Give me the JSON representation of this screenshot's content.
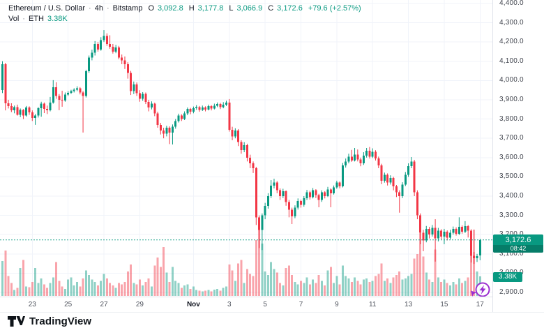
{
  "header": {
    "symbol": "Ethereum / U.S. Dollar",
    "sep": "·",
    "interval": "4h",
    "exchange": "Bitstamp",
    "ohlc": {
      "o_label": "O",
      "o": "3,092.8",
      "h_label": "H",
      "h": "3,177.8",
      "l_label": "L",
      "l": "3,066.9",
      "c_label": "C",
      "c": "3,172.6",
      "change": "+79.6 (+2.57%)"
    },
    "volume_row": {
      "label": "Vol",
      "sep": "·",
      "unit": "ETH",
      "value": "3.38K"
    }
  },
  "price_axis": {
    "current_price_label": "3,172.6",
    "countdown": "08:42",
    "volume_badge": "3.38K"
  },
  "footer": {
    "brand": "TradingView"
  },
  "colors": {
    "up": "#089981",
    "down": "#f23645",
    "vol_up": "rgba(8,153,129,0.45)",
    "vol_down": "rgba(242,54,69,0.45)",
    "grid": "#f0f3fa",
    "axis_border": "#e0e3eb",
    "accent": "#089981",
    "marker": "#9b2fd0",
    "text_dark": "#131722",
    "text_gray": "#787b86"
  },
  "chart_data": {
    "type": "candlestick",
    "title": "Ethereum / U.S. Dollar · 4h · Bitstamp",
    "legend": [
      "Price (ETH/USD candles)",
      "Vol · ETH"
    ],
    "current_bar": {
      "open": 3092.8,
      "high": 3177.8,
      "low": 3066.9,
      "close": 3172.6,
      "change": 79.6,
      "change_pct": 2.57
    },
    "current_price": 3172.6,
    "current_volume": "3.38K",
    "y_axis": {
      "min": 2900,
      "max": 4400,
      "step": 100,
      "labels": [
        "4,400.0",
        "4,300.0",
        "4,200.0",
        "4,100.0",
        "4,000.0",
        "3,900.0",
        "3,800.0",
        "3,700.0",
        "3,600.0",
        "3,500.0",
        "3,400.0",
        "3,300.0",
        "3,200.0",
        "3,100.0",
        "3,000.0",
        "2,900.0"
      ]
    },
    "x_ticks": [
      {
        "label": "23",
        "i": 10
      },
      {
        "label": "25",
        "i": 22
      },
      {
        "label": "27",
        "i": 34
      },
      {
        "label": "29",
        "i": 46
      },
      {
        "label": "Nov",
        "i": 64,
        "month": true
      },
      {
        "label": "3",
        "i": 76
      },
      {
        "label": "5",
        "i": 88
      },
      {
        "label": "7",
        "i": 100
      },
      {
        "label": "9",
        "i": 112
      },
      {
        "label": "11",
        "i": 124
      },
      {
        "label": "13",
        "i": 136
      },
      {
        "label": "15",
        "i": 148
      },
      {
        "label": "17",
        "i": 160
      }
    ],
    "candles": [
      [
        3950,
        4100,
        3935,
        4085,
        6.0
      ],
      [
        4085,
        4092,
        3845,
        3882,
        7.8
      ],
      [
        3882,
        3900,
        3855,
        3868,
        3.4
      ],
      [
        3868,
        3882,
        3836,
        3845,
        2.2
      ],
      [
        3845,
        3870,
        3830,
        3862,
        1.0
      ],
      [
        3862,
        3875,
        3818,
        3823,
        1.4
      ],
      [
        3823,
        3855,
        3810,
        3848,
        4.8
      ],
      [
        3848,
        3852,
        3800,
        3818,
        6.2
      ],
      [
        3818,
        3868,
        3812,
        3860,
        1.6
      ],
      [
        3860,
        3866,
        3822,
        3835,
        1.5
      ],
      [
        3835,
        3845,
        3790,
        3805,
        2.4
      ],
      [
        3805,
        3826,
        3770,
        3818,
        4.8
      ],
      [
        3818,
        3862,
        3808,
        3856,
        2.2
      ],
      [
        3856,
        3890,
        3812,
        3880,
        3.0
      ],
      [
        3880,
        3886,
        3831,
        3852,
        2.0
      ],
      [
        3852,
        3870,
        3826,
        3846,
        1.4
      ],
      [
        3846,
        3915,
        3840,
        3885,
        2.2
      ],
      [
        3885,
        4002,
        3880,
        3965,
        3.2
      ],
      [
        3965,
        3991,
        3905,
        3920,
        5.8
      ],
      [
        3920,
        3930,
        3846,
        3900,
        2.6
      ],
      [
        3900,
        3947,
        3864,
        3896,
        1.6
      ],
      [
        3896,
        3938,
        3890,
        3928,
        1.2
      ],
      [
        3928,
        3945,
        3920,
        3936,
        2.8
      ],
      [
        3936,
        3952,
        3930,
        3945,
        3.2
      ],
      [
        3945,
        3960,
        3938,
        3952,
        1.8
      ],
      [
        3952,
        3970,
        3945,
        3960,
        2.4
      ],
      [
        3960,
        3966,
        3928,
        3938,
        1.6
      ],
      [
        3938,
        3945,
        3730,
        3920,
        3.0
      ],
      [
        3920,
        4056,
        3912,
        4048,
        4.4
      ],
      [
        4048,
        4130,
        4040,
        4120,
        3.6
      ],
      [
        4120,
        4160,
        4105,
        4145,
        2.8
      ],
      [
        4145,
        4205,
        4130,
        4190,
        2.4
      ],
      [
        4190,
        4200,
        4150,
        4160,
        1.8
      ],
      [
        4160,
        4225,
        4155,
        4210,
        2.6
      ],
      [
        4210,
        4262,
        4200,
        4232,
        3.8
      ],
      [
        4232,
        4245,
        4180,
        4190,
        3.0
      ],
      [
        4190,
        4235,
        4165,
        4175,
        2.2
      ],
      [
        4175,
        4190,
        4140,
        4150,
        1.8
      ],
      [
        4150,
        4185,
        4142,
        4172,
        1.4
      ],
      [
        4172,
        4180,
        4110,
        4120,
        2.2
      ],
      [
        4120,
        4135,
        4085,
        4105,
        2.0
      ],
      [
        4105,
        4125,
        4060,
        4085,
        2.4
      ],
      [
        4085,
        4095,
        4010,
        4040,
        4.2
      ],
      [
        4040,
        4050,
        3925,
        3945,
        5.4
      ],
      [
        3945,
        3995,
        3930,
        3980,
        2.2
      ],
      [
        3980,
        3990,
        3920,
        3935,
        2.0
      ],
      [
        3935,
        3950,
        3890,
        3905,
        2.8
      ],
      [
        3905,
        3940,
        3895,
        3930,
        1.8
      ],
      [
        3930,
        3938,
        3878,
        3890,
        2.4
      ],
      [
        3890,
        3900,
        3840,
        3860,
        3.0
      ],
      [
        3860,
        3892,
        3850,
        3880,
        1.6
      ],
      [
        3880,
        3885,
        3815,
        3830,
        5.2
      ],
      [
        3830,
        3838,
        3755,
        3770,
        6.6
      ],
      [
        3770,
        3780,
        3720,
        3740,
        5.0
      ],
      [
        3740,
        3755,
        3700,
        3725,
        8.4
      ],
      [
        3725,
        3765,
        3710,
        3755,
        4.0
      ],
      [
        3755,
        3762,
        3670,
        3730,
        2.4
      ],
      [
        3730,
        3772,
        3668,
        3760,
        5.0
      ],
      [
        3760,
        3800,
        3750,
        3790,
        2.6
      ],
      [
        3790,
        3828,
        3782,
        3818,
        2.2
      ],
      [
        3818,
        3825,
        3790,
        3800,
        1.4
      ],
      [
        3800,
        3840,
        3795,
        3830,
        1.8
      ],
      [
        3830,
        3860,
        3820,
        3852,
        2.0
      ],
      [
        3852,
        3858,
        3825,
        3838,
        1.2
      ],
      [
        3838,
        3865,
        3830,
        3856,
        1.6
      ],
      [
        3856,
        3872,
        3848,
        3862,
        1.0
      ],
      [
        3862,
        3868,
        3838,
        3848,
        0.9
      ],
      [
        3848,
        3870,
        3842,
        3860,
        0.8
      ],
      [
        3860,
        3866,
        3840,
        3850,
        0.9
      ],
      [
        3850,
        3875,
        3845,
        3868,
        1.0
      ],
      [
        3868,
        3872,
        3845,
        3855,
        0.8
      ],
      [
        3855,
        3880,
        3850,
        3870,
        1.1
      ],
      [
        3870,
        3886,
        3862,
        3878,
        1.2
      ],
      [
        3878,
        3884,
        3852,
        3862,
        0.9
      ],
      [
        3862,
        3888,
        3856,
        3875,
        1.4
      ],
      [
        3875,
        3895,
        3868,
        3885,
        1.6
      ],
      [
        3885,
        3904,
        3735,
        3745,
        5.4
      ],
      [
        3745,
        3760,
        3690,
        3710,
        4.4
      ],
      [
        3710,
        3752,
        3700,
        3740,
        2.6
      ],
      [
        3740,
        3748,
        3660,
        3680,
        5.6
      ],
      [
        3680,
        3690,
        3620,
        3640,
        6.2
      ],
      [
        3640,
        3680,
        3628,
        3665,
        2.2
      ],
      [
        3665,
        3672,
        3580,
        3600,
        4.6
      ],
      [
        3600,
        3615,
        3545,
        3570,
        3.8
      ],
      [
        3570,
        3580,
        3520,
        3545,
        3.4
      ],
      [
        3545,
        3552,
        3250,
        3290,
        9.6
      ],
      [
        3290,
        3300,
        3130,
        3225,
        11.8
      ],
      [
        3225,
        3310,
        3120,
        3300,
        9.0
      ],
      [
        3300,
        3365,
        3280,
        3350,
        4.2
      ],
      [
        3350,
        3415,
        3335,
        3400,
        3.6
      ],
      [
        3400,
        3483,
        3390,
        3455,
        5.8
      ],
      [
        3455,
        3490,
        3440,
        3470,
        4.6
      ],
      [
        3470,
        3478,
        3415,
        3430,
        4.0
      ],
      [
        3430,
        3440,
        3380,
        3400,
        2.2
      ],
      [
        3400,
        3438,
        3390,
        3425,
        1.8
      ],
      [
        3425,
        3430,
        3350,
        3370,
        4.8
      ],
      [
        3370,
        3380,
        3290,
        3330,
        5.2
      ],
      [
        3330,
        3340,
        3255,
        3295,
        3.6
      ],
      [
        3295,
        3352,
        3285,
        3340,
        2.4
      ],
      [
        3340,
        3388,
        3330,
        3375,
        2.0
      ],
      [
        3375,
        3382,
        3340,
        3355,
        2.6
      ],
      [
        3355,
        3400,
        3345,
        3390,
        2.2
      ],
      [
        3390,
        3432,
        3380,
        3420,
        3.2
      ],
      [
        3420,
        3428,
        3382,
        3395,
        2.0
      ],
      [
        3395,
        3442,
        3388,
        3430,
        2.8
      ],
      [
        3430,
        3436,
        3390,
        3405,
        2.2
      ],
      [
        3405,
        3412,
        3342,
        3380,
        3.6
      ],
      [
        3380,
        3430,
        3370,
        3420,
        2.6
      ],
      [
        3420,
        3426,
        3388,
        3400,
        1.8
      ],
      [
        3400,
        3448,
        3395,
        3435,
        4.4
      ],
      [
        3435,
        3440,
        3342,
        3415,
        5.0
      ],
      [
        3415,
        3455,
        3408,
        3445,
        2.2
      ],
      [
        3445,
        3480,
        3438,
        3470,
        3.4
      ],
      [
        3470,
        3476,
        3440,
        3450,
        2.0
      ],
      [
        3450,
        3572,
        3445,
        3560,
        5.2
      ],
      [
        3560,
        3595,
        3548,
        3580,
        3.4
      ],
      [
        3580,
        3620,
        3570,
        3605,
        3.0
      ],
      [
        3605,
        3640,
        3578,
        3585,
        2.4
      ],
      [
        3585,
        3650,
        3580,
        3615,
        3.2
      ],
      [
        3615,
        3642,
        3580,
        3590,
        2.6
      ],
      [
        3590,
        3600,
        3555,
        3570,
        2.0
      ],
      [
        3570,
        3628,
        3562,
        3610,
        2.8
      ],
      [
        3610,
        3650,
        3600,
        3635,
        3.0
      ],
      [
        3635,
        3655,
        3595,
        3605,
        2.4
      ],
      [
        3605,
        3648,
        3598,
        3630,
        2.6
      ],
      [
        3630,
        3638,
        3585,
        3595,
        3.4
      ],
      [
        3595,
        3605,
        3545,
        3560,
        3.8
      ],
      [
        3560,
        3568,
        3462,
        3480,
        5.6
      ],
      [
        3480,
        3522,
        3470,
        3510,
        2.6
      ],
      [
        3510,
        3518,
        3455,
        3470,
        3.0
      ],
      [
        3470,
        3508,
        3460,
        3495,
        2.2
      ],
      [
        3495,
        3500,
        3430,
        3450,
        3.2
      ],
      [
        3450,
        3458,
        3395,
        3420,
        3.6
      ],
      [
        3420,
        3430,
        3314,
        3400,
        4.2
      ],
      [
        3400,
        3472,
        3390,
        3460,
        2.8
      ],
      [
        3460,
        3525,
        3452,
        3510,
        3.0
      ],
      [
        3510,
        3570,
        3500,
        3555,
        3.4
      ],
      [
        3555,
        3603,
        3545,
        3580,
        3.8
      ],
      [
        3580,
        3588,
        3400,
        3420,
        6.4
      ],
      [
        3420,
        3430,
        3280,
        3300,
        7.2
      ],
      [
        3300,
        3310,
        3150,
        3210,
        10.8
      ],
      [
        3210,
        3225,
        3114,
        3170,
        6.8
      ],
      [
        3170,
        3245,
        3160,
        3230,
        4.0
      ],
      [
        3230,
        3240,
        3180,
        3200,
        2.8
      ],
      [
        3200,
        3250,
        3190,
        3235,
        2.4
      ],
      [
        3235,
        3280,
        3060,
        3180,
        8.0
      ],
      [
        3180,
        3235,
        3165,
        3220,
        3.2
      ],
      [
        3220,
        3228,
        3175,
        3190,
        2.4
      ],
      [
        3190,
        3230,
        3150,
        3215,
        2.8
      ],
      [
        3215,
        3222,
        3170,
        3185,
        2.2
      ],
      [
        3185,
        3225,
        3175,
        3210,
        1.8
      ],
      [
        3210,
        3242,
        3200,
        3230,
        2.4
      ],
      [
        3230,
        3238,
        3195,
        3205,
        2.0
      ],
      [
        3205,
        3290,
        3198,
        3240,
        3.0
      ],
      [
        3240,
        3248,
        3205,
        3215,
        2.2
      ],
      [
        3215,
        3270,
        3208,
        3245,
        2.6
      ],
      [
        3245,
        3250,
        3185,
        3220,
        3.2
      ],
      [
        3220,
        3228,
        3055,
        3090,
        8.6
      ],
      [
        3090,
        3110,
        3048,
        3078,
        11.4
      ],
      [
        3078,
        3100,
        3058,
        3088,
        4.2
      ],
      [
        3092.8,
        3177.8,
        3066.9,
        3172.6,
        3.38
      ]
    ]
  }
}
